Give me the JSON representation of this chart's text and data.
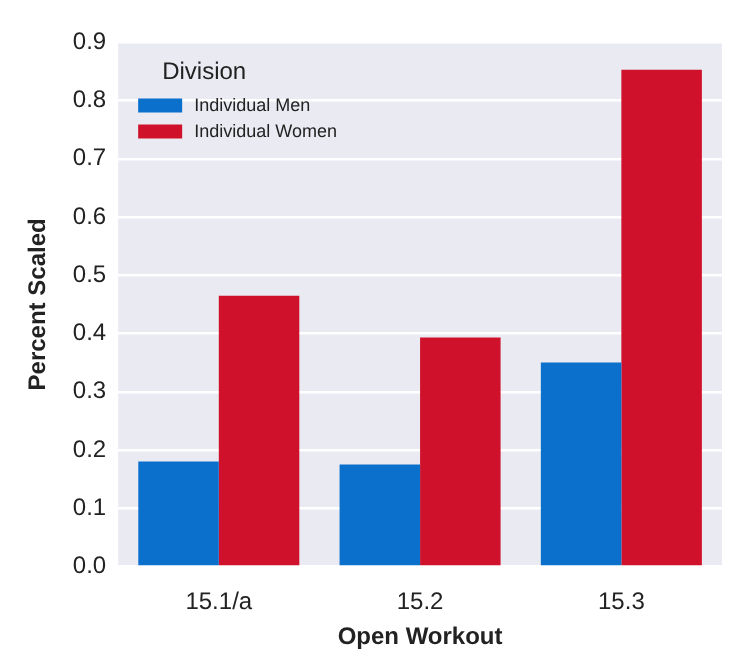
{
  "chart_data": {
    "type": "bar",
    "xlabel": "Open Workout",
    "ylabel": "Percent Scaled",
    "legend_title": "Division",
    "categories": [
      "15.1/a",
      "15.2",
      "15.3"
    ],
    "series": [
      {
        "name": "Individual Men",
        "color": "#0b6fcc",
        "values": [
          0.18,
          0.175,
          0.35
        ]
      },
      {
        "name": "Individual Women",
        "color": "#d0112b",
        "values": [
          0.465,
          0.393,
          0.853
        ]
      }
    ],
    "ylim": [
      0,
      0.9
    ],
    "yticks": [
      {
        "value": 0,
        "label": "0.0"
      },
      0.1,
      0.2,
      0.3,
      0.4,
      0.5,
      0.6,
      0.7,
      0.8,
      0.9
    ],
    "grid": "y",
    "legend": "top left"
  }
}
